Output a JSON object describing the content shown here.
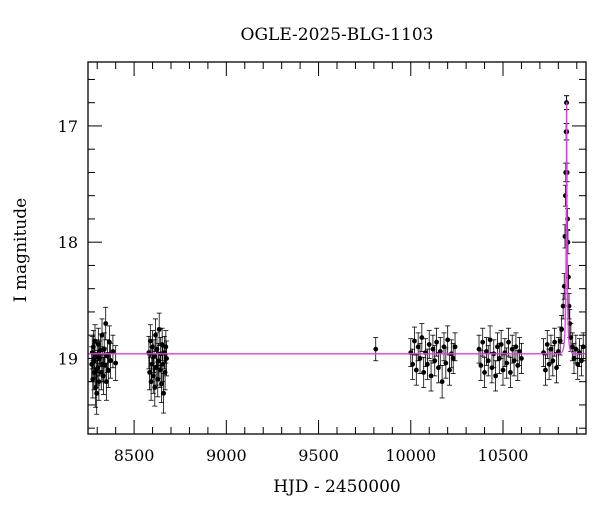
{
  "chart_data": {
    "type": "scatter",
    "title": "OGLE-2025-BLG-1103",
    "xlabel": "HJD - 2450000",
    "ylabel": "I magnitude",
    "xlim": [
      8250,
      10950
    ],
    "ylim": [
      19.65,
      16.45
    ],
    "y_inverted": true,
    "x_ticks": [
      8500,
      9000,
      9500,
      10000,
      10500
    ],
    "y_ticks": [
      17,
      18,
      19
    ],
    "grid": false,
    "colors": {
      "data": "#000000",
      "model": "#e23de2"
    },
    "baseline_mag": 18.96,
    "model": {
      "t0": 10845,
      "tE": 10,
      "u0": 0.02,
      "fs": 0.5,
      "peak_mag": 16.8
    },
    "series": [
      {
        "role": "data-with-errorbars",
        "points": [
          [
            8270,
            19.05,
            0.15
          ],
          [
            8273,
            18.95,
            0.14
          ],
          [
            8276,
            19.18,
            0.16
          ],
          [
            8279,
            18.9,
            0.14
          ],
          [
            8282,
            19.12,
            0.15
          ],
          [
            8285,
            19.02,
            0.15
          ],
          [
            8288,
            18.85,
            0.14
          ],
          [
            8291,
            19.25,
            0.17
          ],
          [
            8294,
            19.1,
            0.15
          ],
          [
            8297,
            19.3,
            0.18
          ],
          [
            8300,
            18.98,
            0.14
          ],
          [
            8303,
            19.08,
            0.15
          ],
          [
            8306,
            18.88,
            0.14
          ],
          [
            8309,
            19.2,
            0.16
          ],
          [
            8312,
            19.0,
            0.15
          ],
          [
            8318,
            18.93,
            0.14
          ],
          [
            8322,
            19.12,
            0.15
          ],
          [
            8326,
            18.8,
            0.14
          ],
          [
            8330,
            19.05,
            0.15
          ],
          [
            8334,
            19.15,
            0.16
          ],
          [
            8338,
            18.92,
            0.14
          ],
          [
            8342,
            19.06,
            0.15
          ],
          [
            8346,
            18.7,
            0.14
          ],
          [
            8350,
            19.2,
            0.16
          ],
          [
            8355,
            18.98,
            0.14
          ],
          [
            8360,
            19.1,
            0.15
          ],
          [
            8366,
            18.86,
            0.14
          ],
          [
            8372,
            19.02,
            0.15
          ],
          [
            8385,
            18.94,
            0.14
          ],
          [
            8400,
            19.04,
            0.15
          ],
          [
            8580,
            18.95,
            0.14
          ],
          [
            8584,
            19.12,
            0.15
          ],
          [
            8588,
            18.85,
            0.14
          ],
          [
            8592,
            19.2,
            0.16
          ],
          [
            8596,
            19.05,
            0.15
          ],
          [
            8600,
            18.9,
            0.14
          ],
          [
            8604,
            19.15,
            0.15
          ],
          [
            8608,
            18.98,
            0.14
          ],
          [
            8612,
            19.25,
            0.16
          ],
          [
            8616,
            18.8,
            0.14
          ],
          [
            8620,
            19.08,
            0.15
          ],
          [
            8624,
            18.92,
            0.14
          ],
          [
            8628,
            19.18,
            0.15
          ],
          [
            8632,
            19.02,
            0.15
          ],
          [
            8636,
            18.75,
            0.14
          ],
          [
            8640,
            19.1,
            0.15
          ],
          [
            8644,
            18.96,
            0.14
          ],
          [
            8648,
            19.22,
            0.16
          ],
          [
            8652,
            18.88,
            0.14
          ],
          [
            8656,
            19.05,
            0.15
          ],
          [
            8660,
            19.3,
            0.17
          ],
          [
            8664,
            18.95,
            0.14
          ],
          [
            8668,
            19.12,
            0.15
          ],
          [
            8672,
            18.9,
            0.14
          ],
          [
            8676,
            19.0,
            0.15
          ],
          [
            9810,
            18.92,
            0.1
          ],
          [
            10000,
            18.95,
            0.12
          ],
          [
            10010,
            19.05,
            0.13
          ],
          [
            10020,
            18.85,
            0.12
          ],
          [
            10030,
            19.1,
            0.13
          ],
          [
            10040,
            18.9,
            0.12
          ],
          [
            10050,
            19.0,
            0.13
          ],
          [
            10060,
            18.82,
            0.12
          ],
          [
            10070,
            19.12,
            0.13
          ],
          [
            10080,
            18.95,
            0.12
          ],
          [
            10090,
            19.05,
            0.13
          ],
          [
            10100,
            18.88,
            0.12
          ],
          [
            10110,
            19.15,
            0.13
          ],
          [
            10120,
            18.92,
            0.12
          ],
          [
            10130,
            19.02,
            0.13
          ],
          [
            10140,
            18.86,
            0.12
          ],
          [
            10150,
            19.08,
            0.13
          ],
          [
            10160,
            18.94,
            0.12
          ],
          [
            10170,
            19.2,
            0.14
          ],
          [
            10180,
            18.9,
            0.12
          ],
          [
            10190,
            19.04,
            0.13
          ],
          [
            10200,
            18.84,
            0.12
          ],
          [
            10210,
            19.1,
            0.13
          ],
          [
            10220,
            18.96,
            0.12
          ],
          [
            10230,
            19.0,
            0.13
          ],
          [
            10240,
            18.9,
            0.12
          ],
          [
            10370,
            18.92,
            0.12
          ],
          [
            10380,
            19.06,
            0.13
          ],
          [
            10390,
            18.86,
            0.12
          ],
          [
            10400,
            19.12,
            0.13
          ],
          [
            10410,
            18.94,
            0.12
          ],
          [
            10420,
            19.02,
            0.13
          ],
          [
            10430,
            18.84,
            0.12
          ],
          [
            10440,
            19.08,
            0.13
          ],
          [
            10450,
            18.96,
            0.12
          ],
          [
            10460,
            19.15,
            0.13
          ],
          [
            10470,
            18.9,
            0.12
          ],
          [
            10480,
            19.0,
            0.13
          ],
          [
            10490,
            18.88,
            0.12
          ],
          [
            10500,
            19.1,
            0.13
          ],
          [
            10510,
            18.95,
            0.12
          ],
          [
            10520,
            19.04,
            0.13
          ],
          [
            10530,
            18.86,
            0.12
          ],
          [
            10540,
            19.12,
            0.13
          ],
          [
            10550,
            18.92,
            0.12
          ],
          [
            10560,
            19.02,
            0.13
          ],
          [
            10570,
            18.9,
            0.12
          ],
          [
            10580,
            19.06,
            0.13
          ],
          [
            10590,
            18.94,
            0.12
          ],
          [
            10600,
            19.0,
            0.13
          ],
          [
            10720,
            18.95,
            0.12
          ],
          [
            10730,
            19.1,
            0.13
          ],
          [
            10740,
            18.88,
            0.12
          ],
          [
            10750,
            19.05,
            0.13
          ],
          [
            10760,
            18.92,
            0.12
          ],
          [
            10770,
            19.02,
            0.13
          ],
          [
            10780,
            18.86,
            0.12
          ],
          [
            10790,
            19.08,
            0.13
          ],
          [
            10800,
            18.94,
            0.12
          ],
          [
            10810,
            18.85,
            0.12
          ],
          [
            10818,
            18.75,
            0.12
          ],
          [
            10826,
            18.55,
            0.11
          ],
          [
            10832,
            18.38,
            0.11
          ],
          [
            10836,
            17.95,
            0.1
          ],
          [
            10838,
            17.6,
            0.09
          ],
          [
            10840,
            17.4,
            0.08
          ],
          [
            10842,
            17.05,
            0.07
          ],
          [
            10844,
            16.8,
            0.06
          ],
          [
            10845,
            16.8,
            0.06
          ],
          [
            10846,
            17.05,
            0.07
          ],
          [
            10848,
            17.4,
            0.08
          ],
          [
            10850,
            17.8,
            0.09
          ],
          [
            10852,
            18.0,
            0.1
          ],
          [
            10855,
            18.3,
            0.1
          ],
          [
            10858,
            18.55,
            0.11
          ],
          [
            10862,
            18.7,
            0.12
          ],
          [
            10868,
            18.82,
            0.12
          ],
          [
            10876,
            18.9,
            0.12
          ],
          [
            10885,
            19.0,
            0.13
          ],
          [
            10895,
            18.92,
            0.12
          ],
          [
            10905,
            19.05,
            0.13
          ],
          [
            10915,
            18.95,
            0.12
          ],
          [
            10925,
            19.02,
            0.13
          ],
          [
            10935,
            18.9,
            0.12
          ]
        ]
      }
    ]
  }
}
